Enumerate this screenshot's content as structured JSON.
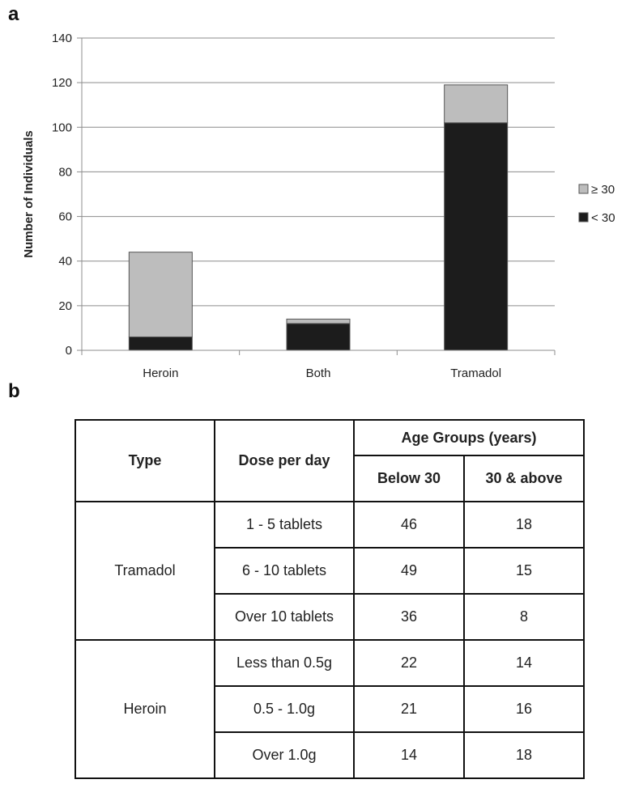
{
  "panels": {
    "a": "a",
    "b": "b"
  },
  "chart_data": {
    "type": "bar",
    "stacked": true,
    "categories": [
      "Heroin",
      "Both",
      "Tramadol"
    ],
    "series": [
      {
        "name": "< 30",
        "values": [
          6,
          12,
          102
        ],
        "color": "#1c1c1c"
      },
      {
        "name": "≥ 30",
        "values": [
          38,
          2,
          17
        ],
        "color": "#bdbdbd"
      }
    ],
    "ylabel": "Number of Individuals",
    "xlabel": "",
    "ylim": [
      0,
      140
    ],
    "yticks": [
      0,
      20,
      40,
      60,
      80,
      100,
      120,
      140
    ],
    "grid": true,
    "legend_position": "right",
    "legend_order": [
      "≥ 30",
      "< 30"
    ]
  },
  "table": {
    "headers": {
      "type": "Type",
      "dose": "Dose per day",
      "age_groups": "Age Groups (years)",
      "below": "Below 30",
      "above": "30 & above"
    },
    "groups": [
      {
        "type": "Tramadol",
        "rows": [
          {
            "dose": "1 - 5 tablets",
            "below": "46",
            "above": "18"
          },
          {
            "dose": "6 - 10 tablets",
            "below": "49",
            "above": "15"
          },
          {
            "dose": "Over 10 tablets",
            "below": "36",
            "above": "8"
          }
        ]
      },
      {
        "type": "Heroin",
        "rows": [
          {
            "dose": "Less than 0.5g",
            "below": "22",
            "above": "14"
          },
          {
            "dose": "0.5 - 1.0g",
            "below": "21",
            "above": "16"
          },
          {
            "dose": "Over 1.0g",
            "below": "14",
            "above": "18"
          }
        ]
      }
    ]
  }
}
